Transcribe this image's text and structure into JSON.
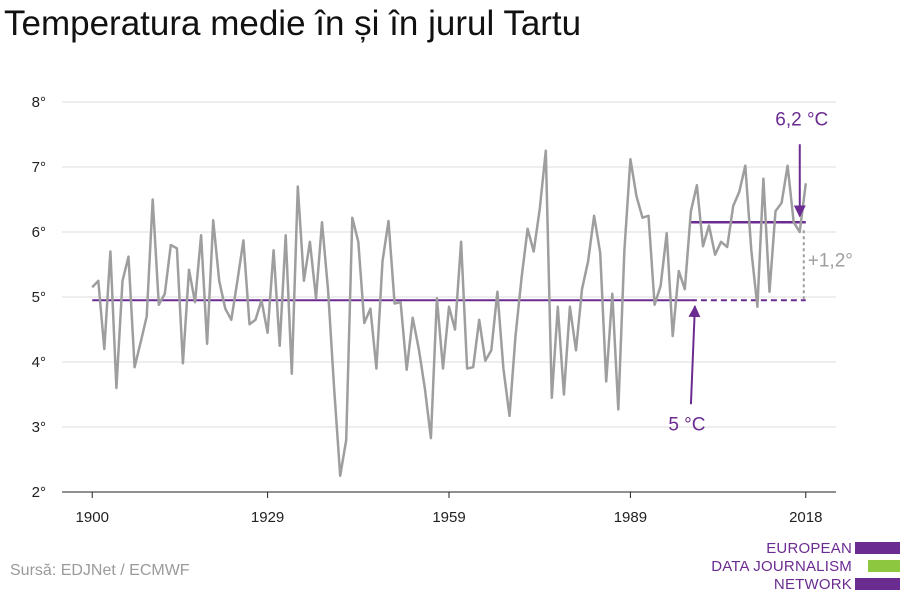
{
  "title": "Temperatura medie în și în jurul Tartu",
  "source": "Sursă: EDJNet / ECMWF",
  "logo": {
    "lines": [
      "EUROPEAN",
      "DATA JOURNALISM",
      "NETWORK"
    ],
    "colors": [
      "#6b2c91",
      "#8dc63f",
      "#6b2c91"
    ]
  },
  "colors": {
    "series": "#9e9e9e",
    "accent": "#6b2c91",
    "grid": "#dddddd",
    "axis": "#222222"
  },
  "chart_data": {
    "type": "line",
    "x_ticks": [
      1900,
      1929,
      1959,
      1989,
      2018
    ],
    "y_ticks": [
      2,
      3,
      4,
      5,
      6,
      7,
      8
    ],
    "y_tick_labels": [
      "2°",
      "3°",
      "4°",
      "5°",
      "6°",
      "7°",
      "8°"
    ],
    "xlim": [
      1895,
      2023
    ],
    "ylim": [
      2,
      8
    ],
    "grid": "horizontal",
    "series": [
      {
        "x": [
          1900,
          1901,
          1902,
          1903,
          1904,
          1905,
          1906,
          1907,
          1908,
          1909,
          1910,
          1911,
          1912,
          1913,
          1914,
          1915,
          1916,
          1917,
          1918,
          1919,
          1920,
          1921,
          1922,
          1923,
          1924,
          1925,
          1926,
          1927,
          1928,
          1929,
          1930,
          1931,
          1932,
          1933,
          1934,
          1935,
          1936,
          1937,
          1938,
          1939,
          1940,
          1941,
          1942,
          1943,
          1944,
          1945,
          1946,
          1947,
          1948,
          1949,
          1950,
          1951,
          1952,
          1953,
          1954,
          1955,
          1956,
          1957,
          1958,
          1959,
          1960,
          1961,
          1962,
          1963,
          1964,
          1965,
          1966,
          1967,
          1968,
          1969,
          1970,
          1971,
          1972,
          1973,
          1974,
          1975,
          1976,
          1977,
          1978,
          1979,
          1980,
          1981,
          1982,
          1983,
          1984,
          1985,
          1986,
          1987,
          1988,
          1989,
          1990,
          1991,
          1992,
          1993,
          1994,
          1995,
          1996,
          1997,
          1998,
          1999,
          2000,
          2001,
          2002,
          2003,
          2004,
          2005,
          2006,
          2007,
          2008,
          2009,
          2010,
          2011,
          2012,
          2013,
          2014,
          2015,
          2016,
          2017,
          2018
        ],
        "values": [
          5.15,
          5.25,
          4.2,
          5.7,
          3.6,
          5.25,
          5.62,
          3.92,
          4.3,
          4.7,
          6.5,
          4.88,
          5.05,
          5.8,
          5.75,
          3.98,
          5.42,
          4.92,
          5.95,
          4.28,
          6.18,
          5.25,
          4.82,
          4.65,
          5.25,
          5.87,
          4.58,
          4.65,
          4.95,
          4.45,
          5.72,
          4.25,
          5.95,
          3.82,
          6.7,
          5.25,
          5.85,
          4.98,
          6.15,
          5.1,
          3.6,
          2.25,
          2.8,
          6.22,
          5.85,
          4.6,
          4.82,
          3.9,
          5.55,
          6.17,
          4.9,
          4.92,
          3.88,
          4.68,
          4.2,
          3.6,
          2.83,
          4.98,
          3.9,
          4.85,
          4.5,
          5.85,
          3.9,
          3.92,
          4.65,
          4.02,
          4.18,
          5.08,
          3.9,
          3.17,
          4.4,
          5.3,
          6.05,
          5.7,
          6.35,
          7.25,
          3.45,
          4.85,
          3.5,
          4.85,
          4.18,
          5.12,
          5.55,
          6.25,
          5.68,
          3.7,
          5.05,
          3.27,
          5.72,
          7.12,
          6.55,
          6.22,
          6.25,
          4.88,
          5.17,
          5.98,
          4.4,
          5.4,
          5.12,
          6.32,
          6.72,
          5.78,
          6.1,
          5.65,
          5.85,
          5.77,
          6.4,
          6.62,
          7.02,
          5.72,
          4.85,
          6.82,
          5.08,
          6.32,
          6.45,
          7.02,
          6.15,
          6.0,
          6.75
        ]
      }
    ],
    "annotations": {
      "baseline_value": 4.95,
      "baseline_label": "5 °C",
      "recent_value": 6.15,
      "recent_label": "6,2 °C",
      "delta_label": "+1,2°"
    }
  }
}
